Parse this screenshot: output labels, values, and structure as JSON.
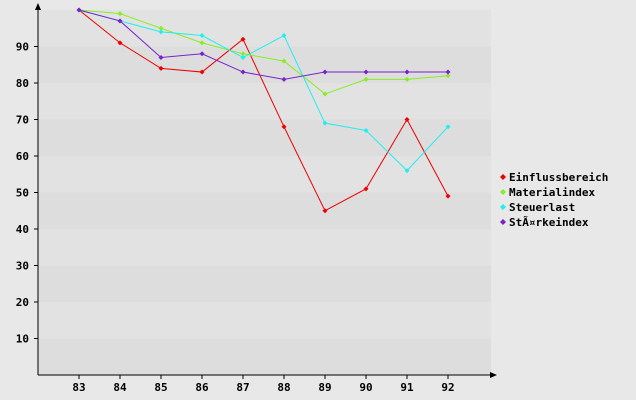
{
  "chart_data": {
    "type": "line",
    "title": "",
    "xlabel": "",
    "ylabel": "",
    "x": [
      "83",
      "84",
      "85",
      "86",
      "87",
      "88",
      "89",
      "90",
      "91",
      "92"
    ],
    "y_ticks": [
      "10",
      "20",
      "30",
      "40",
      "50",
      "60",
      "70",
      "80",
      "90"
    ],
    "ylim": [
      0,
      100
    ],
    "grid": "horizontal alternating bands",
    "legend_position": "right",
    "series": [
      {
        "name": "Einflussbereich",
        "color": "#ee0000",
        "values": [
          100,
          91,
          84,
          83,
          92,
          68,
          45,
          51,
          70,
          49
        ]
      },
      {
        "name": "Materialindex",
        "color": "#88ee22",
        "values": [
          100,
          99,
          95,
          91,
          88,
          86,
          77,
          81,
          81,
          82
        ]
      },
      {
        "name": "Steuerlast",
        "color": "#22eeee",
        "values": [
          100,
          97,
          94,
          93,
          87,
          93,
          69,
          67,
          56,
          68
        ]
      },
      {
        "name": "StÃ¤rkeindex",
        "color": "#7722cc",
        "values": [
          100,
          97,
          87,
          88,
          83,
          81,
          83,
          83,
          83,
          83
        ]
      }
    ]
  }
}
